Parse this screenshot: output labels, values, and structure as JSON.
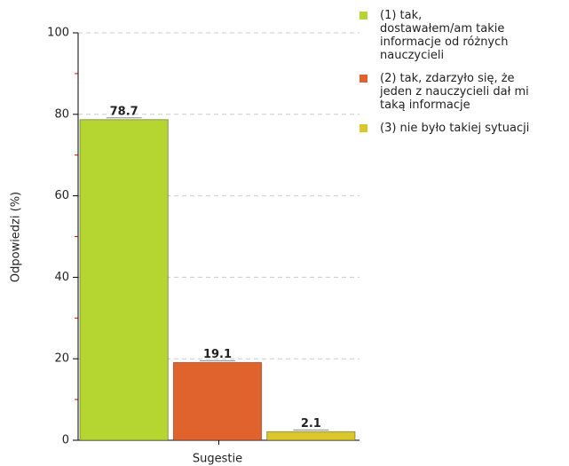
{
  "chart_data": {
    "type": "bar",
    "categories": [
      "Sugestie"
    ],
    "x_label": "Sugestie",
    "y_label": "Odpowiedzi (%)",
    "series": [
      {
        "name": "(1) tak, dostawałem/am takie informacje od różnych nauczycieli",
        "color": "#b5d631",
        "values": [
          78.7
        ]
      },
      {
        "name": "(2) tak, zdarzyło się, że jeden z nauczycieli dał mi taką informacje",
        "color": "#e0622d",
        "values": [
          19.1
        ]
      },
      {
        "name": "(3) nie było takiej sytuacji",
        "color": "#d9c72b",
        "values": [
          2.1
        ]
      }
    ],
    "ylim": [
      0,
      100
    ],
    "yticks": [
      0,
      20,
      40,
      60,
      80,
      100
    ],
    "grid": true,
    "legend": "right"
  }
}
